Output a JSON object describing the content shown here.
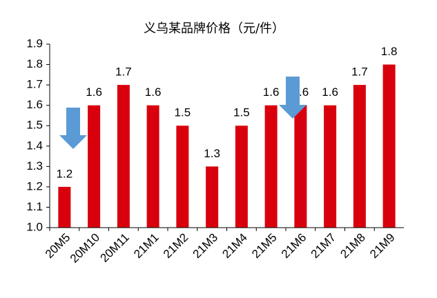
{
  "chart_data": {
    "type": "bar",
    "title": "义乌某品牌价格（元/件）",
    "categories": [
      "20M5",
      "20M10",
      "20M11",
      "21M1",
      "21M2",
      "21M3",
      "21M4",
      "21M5",
      "21M6",
      "21M7",
      "21M8",
      "21M9"
    ],
    "values": [
      1.2,
      1.6,
      1.7,
      1.6,
      1.5,
      1.3,
      1.5,
      1.6,
      1.6,
      1.6,
      1.7,
      1.8
    ],
    "color": "#d9000d",
    "ylim": [
      1.0,
      1.9
    ],
    "yticks": [
      {
        "value": 1,
        "label": "1.0"
      },
      1.1,
      1.2,
      1.3,
      1.4,
      1.5,
      1.6,
      1.7,
      1.8,
      1.9
    ]
  }
}
